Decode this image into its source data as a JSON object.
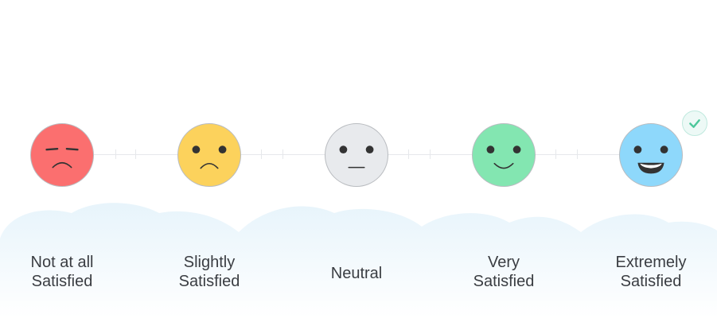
{
  "scale": {
    "options": [
      {
        "label_line1": "Not at all",
        "label_line2": "Satisfied",
        "face": "very-sad-face-icon",
        "color": "#fb6f6f"
      },
      {
        "label_line1": "Slightly",
        "label_line2": "Satisfied",
        "face": "sad-face-icon",
        "color": "#fcd25c"
      },
      {
        "label_line1": "Neutral",
        "label_line2": "",
        "face": "neutral-face-icon",
        "color": "#e8eaed"
      },
      {
        "label_line1": "Very",
        "label_line2": "Satisfied",
        "face": "smile-face-icon",
        "color": "#83e6b1"
      },
      {
        "label_line1": "Extremely",
        "label_line2": "Satisfied",
        "face": "big-smile-face-icon",
        "color": "#8ed8fb"
      }
    ],
    "selected_index": 4,
    "selected_icon": "checkmark-icon"
  }
}
